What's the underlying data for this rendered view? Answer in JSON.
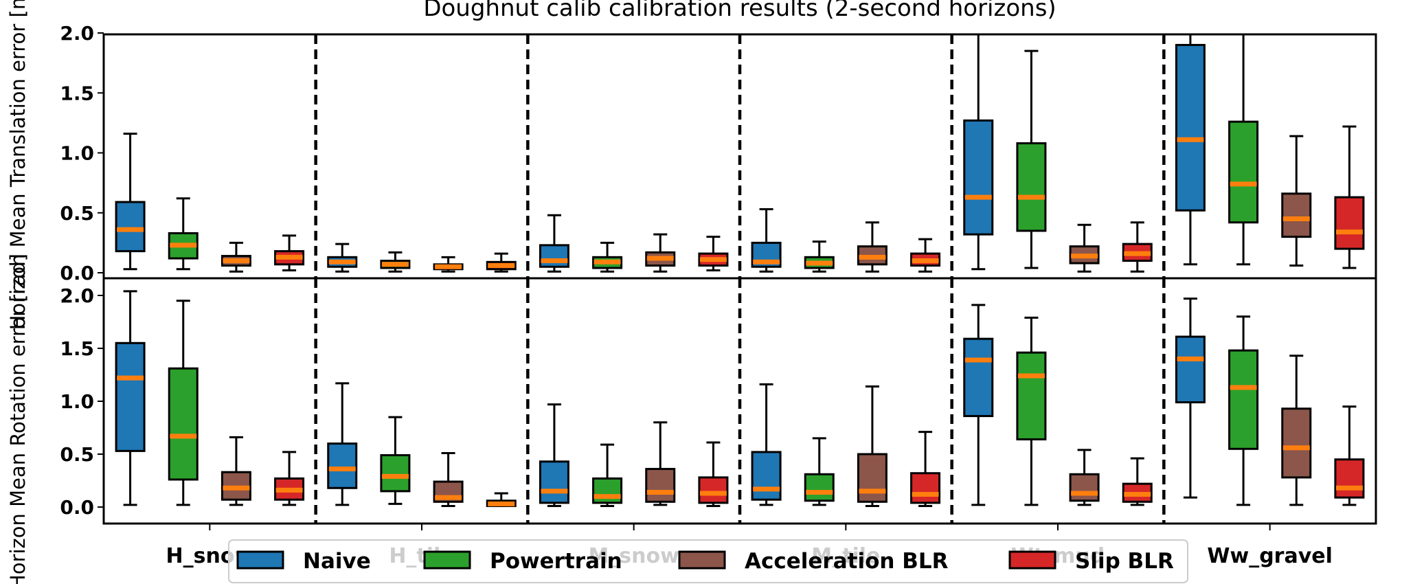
{
  "chart_data": {
    "type": "box",
    "title": "Doughnut calib calibration results (2-second horizons)",
    "colors": {
      "Naive": "#1f77b4",
      "Powertrain": "#2ca02c",
      "Acceleration BLR": "#8c564b",
      "Slip BLR": "#d62728",
      "median": "#ff7f0e"
    },
    "categories": [
      "H_snow",
      "H_tile",
      "M_snow",
      "M_tile",
      "Wt_mud",
      "Ww_gravel"
    ],
    "legend": {
      "placement": "bottom-center",
      "entries": [
        "Naive",
        "Powertrain",
        "Acceleration BLR",
        "Slip BLR"
      ]
    },
    "panels": [
      {
        "ylabel": "Horizon Mean Translation error [m]",
        "ylim": [
          0,
          2.0
        ],
        "yticks": [
          "0.0",
          "0.5",
          "1.0",
          "1.5",
          "2.0"
        ],
        "groups": [
          {
            "category": "H_snow",
            "boxes": [
              {
                "series": "Naive",
                "whislo": 0.03,
                "q1": 0.18,
                "med": 0.36,
                "q3": 0.59,
                "whishi": 1.16
              },
              {
                "series": "Powertrain",
                "whislo": 0.03,
                "q1": 0.12,
                "med": 0.23,
                "q3": 0.33,
                "whishi": 0.62
              },
              {
                "series": "Acceleration BLR",
                "whislo": 0.01,
                "q1": 0.06,
                "med": 0.1,
                "q3": 0.14,
                "whishi": 0.25
              },
              {
                "series": "Slip BLR",
                "whislo": 0.02,
                "q1": 0.07,
                "med": 0.13,
                "q3": 0.18,
                "whishi": 0.31
              }
            ]
          },
          {
            "category": "H_tile",
            "boxes": [
              {
                "series": "Naive",
                "whislo": 0.01,
                "q1": 0.05,
                "med": 0.09,
                "q3": 0.13,
                "whishi": 0.24
              },
              {
                "series": "Powertrain",
                "whislo": 0.01,
                "q1": 0.04,
                "med": 0.07,
                "q3": 0.1,
                "whishi": 0.17
              },
              {
                "series": "Acceleration BLR",
                "whislo": 0.01,
                "q1": 0.03,
                "med": 0.05,
                "q3": 0.07,
                "whishi": 0.13
              },
              {
                "series": "Slip BLR",
                "whislo": 0.01,
                "q1": 0.03,
                "med": 0.06,
                "q3": 0.09,
                "whishi": 0.16
              }
            ]
          },
          {
            "category": "M_snow",
            "boxes": [
              {
                "series": "Naive",
                "whislo": 0.01,
                "q1": 0.05,
                "med": 0.1,
                "q3": 0.23,
                "whishi": 0.48
              },
              {
                "series": "Powertrain",
                "whislo": 0.01,
                "q1": 0.04,
                "med": 0.09,
                "q3": 0.13,
                "whishi": 0.25
              },
              {
                "series": "Acceleration BLR",
                "whislo": 0.01,
                "q1": 0.06,
                "med": 0.12,
                "q3": 0.17,
                "whishi": 0.32
              },
              {
                "series": "Slip BLR",
                "whislo": 0.02,
                "q1": 0.06,
                "med": 0.11,
                "q3": 0.16,
                "whishi": 0.3
              }
            ]
          },
          {
            "category": "M_tile",
            "boxes": [
              {
                "series": "Naive",
                "whislo": 0.01,
                "q1": 0.05,
                "med": 0.09,
                "q3": 0.25,
                "whishi": 0.53
              },
              {
                "series": "Powertrain",
                "whislo": 0.01,
                "q1": 0.04,
                "med": 0.08,
                "q3": 0.13,
                "whishi": 0.26
              },
              {
                "series": "Acceleration BLR",
                "whislo": 0.01,
                "q1": 0.07,
                "med": 0.13,
                "q3": 0.22,
                "whishi": 0.42
              },
              {
                "series": "Slip BLR",
                "whislo": 0.01,
                "q1": 0.06,
                "med": 0.1,
                "q3": 0.16,
                "whishi": 0.28
              }
            ]
          },
          {
            "category": "Wt_mud",
            "boxes": [
              {
                "series": "Naive",
                "whislo": 0.03,
                "q1": 0.32,
                "med": 0.63,
                "q3": 1.27,
                "whishi": 2.0
              },
              {
                "series": "Powertrain",
                "whislo": 0.04,
                "q1": 0.35,
                "med": 0.63,
                "q3": 1.08,
                "whishi": 1.85
              },
              {
                "series": "Acceleration BLR",
                "whislo": 0.01,
                "q1": 0.08,
                "med": 0.14,
                "q3": 0.22,
                "whishi": 0.4
              },
              {
                "series": "Slip BLR",
                "whislo": 0.01,
                "q1": 0.1,
                "med": 0.16,
                "q3": 0.24,
                "whishi": 0.42
              }
            ]
          },
          {
            "category": "Ww_gravel",
            "boxes": [
              {
                "series": "Naive",
                "whislo": 0.07,
                "q1": 0.52,
                "med": 1.11,
                "q3": 1.9,
                "whishi": 2.0
              },
              {
                "series": "Powertrain",
                "whislo": 0.07,
                "q1": 0.42,
                "med": 0.74,
                "q3": 1.26,
                "whishi": 2.0
              },
              {
                "series": "Acceleration BLR",
                "whislo": 0.06,
                "q1": 0.3,
                "med": 0.45,
                "q3": 0.66,
                "whishi": 1.14
              },
              {
                "series": "Slip BLR",
                "whislo": 0.04,
                "q1": 0.2,
                "med": 0.34,
                "q3": 0.63,
                "whishi": 1.22
              }
            ]
          }
        ]
      },
      {
        "ylabel": "Horizon Mean Rotation error [rad]",
        "ylim": [
          -0.15,
          2.1
        ],
        "yticks": [
          "0.0",
          "0.5",
          "1.0",
          "1.5",
          "2.0"
        ],
        "groups": [
          {
            "category": "H_snow",
            "boxes": [
              {
                "series": "Naive",
                "whislo": 0.02,
                "q1": 0.53,
                "med": 1.22,
                "q3": 1.55,
                "whishi": 2.04
              },
              {
                "series": "Powertrain",
                "whislo": 0.02,
                "q1": 0.26,
                "med": 0.67,
                "q3": 1.31,
                "whishi": 1.95
              },
              {
                "series": "Acceleration BLR",
                "whislo": 0.02,
                "q1": 0.07,
                "med": 0.18,
                "q3": 0.33,
                "whishi": 0.66
              },
              {
                "series": "Slip BLR",
                "whislo": 0.02,
                "q1": 0.07,
                "med": 0.16,
                "q3": 0.27,
                "whishi": 0.52
              }
            ]
          },
          {
            "category": "H_tile",
            "boxes": [
              {
                "series": "Naive",
                "whislo": 0.02,
                "q1": 0.18,
                "med": 0.36,
                "q3": 0.6,
                "whishi": 1.17
              },
              {
                "series": "Powertrain",
                "whislo": 0.03,
                "q1": 0.15,
                "med": 0.29,
                "q3": 0.49,
                "whishi": 0.85
              },
              {
                "series": "Acceleration BLR",
                "whislo": 0.01,
                "q1": 0.05,
                "med": 0.09,
                "q3": 0.24,
                "whishi": 0.51
              },
              {
                "series": "Slip BLR",
                "whislo": 0.01,
                "q1": 0.01,
                "med": 0.03,
                "q3": 0.06,
                "whishi": 0.13
              }
            ]
          },
          {
            "category": "M_snow",
            "boxes": [
              {
                "series": "Naive",
                "whislo": 0.01,
                "q1": 0.04,
                "med": 0.15,
                "q3": 0.43,
                "whishi": 0.97
              },
              {
                "series": "Powertrain",
                "whislo": 0.01,
                "q1": 0.04,
                "med": 0.1,
                "q3": 0.27,
                "whishi": 0.59
              },
              {
                "series": "Acceleration BLR",
                "whislo": 0.02,
                "q1": 0.05,
                "med": 0.14,
                "q3": 0.36,
                "whishi": 0.8
              },
              {
                "series": "Slip BLR",
                "whislo": 0.01,
                "q1": 0.04,
                "med": 0.13,
                "q3": 0.28,
                "whishi": 0.61
              }
            ]
          },
          {
            "category": "M_tile",
            "boxes": [
              {
                "series": "Naive",
                "whislo": 0.02,
                "q1": 0.07,
                "med": 0.17,
                "q3": 0.52,
                "whishi": 1.16
              },
              {
                "series": "Powertrain",
                "whislo": 0.02,
                "q1": 0.06,
                "med": 0.14,
                "q3": 0.31,
                "whishi": 0.65
              },
              {
                "series": "Acceleration BLR",
                "whislo": 0.01,
                "q1": 0.05,
                "med": 0.15,
                "q3": 0.5,
                "whishi": 1.14
              },
              {
                "series": "Slip BLR",
                "whislo": 0.01,
                "q1": 0.04,
                "med": 0.12,
                "q3": 0.32,
                "whishi": 0.71
              }
            ]
          },
          {
            "category": "Wt_mud",
            "boxes": [
              {
                "series": "Naive",
                "whislo": 0.02,
                "q1": 0.86,
                "med": 1.39,
                "q3": 1.59,
                "whishi": 1.91
              },
              {
                "series": "Powertrain",
                "whislo": 0.02,
                "q1": 0.64,
                "med": 1.24,
                "q3": 1.46,
                "whishi": 1.79
              },
              {
                "series": "Acceleration BLR",
                "whislo": 0.02,
                "q1": 0.06,
                "med": 0.13,
                "q3": 0.31,
                "whishi": 0.54
              },
              {
                "series": "Slip BLR",
                "whislo": 0.02,
                "q1": 0.05,
                "med": 0.12,
                "q3": 0.22,
                "whishi": 0.46
              }
            ]
          },
          {
            "category": "Ww_gravel",
            "boxes": [
              {
                "series": "Naive",
                "whislo": 0.09,
                "q1": 0.99,
                "med": 1.4,
                "q3": 1.61,
                "whishi": 1.97
              },
              {
                "series": "Powertrain",
                "whislo": 0.02,
                "q1": 0.55,
                "med": 1.13,
                "q3": 1.48,
                "whishi": 1.8
              },
              {
                "series": "Acceleration BLR",
                "whislo": 0.02,
                "q1": 0.28,
                "med": 0.56,
                "q3": 0.93,
                "whishi": 1.43
              },
              {
                "series": "Slip BLR",
                "whislo": 0.02,
                "q1": 0.09,
                "med": 0.18,
                "q3": 0.45,
                "whishi": 0.95
              }
            ]
          }
        ]
      }
    ]
  }
}
